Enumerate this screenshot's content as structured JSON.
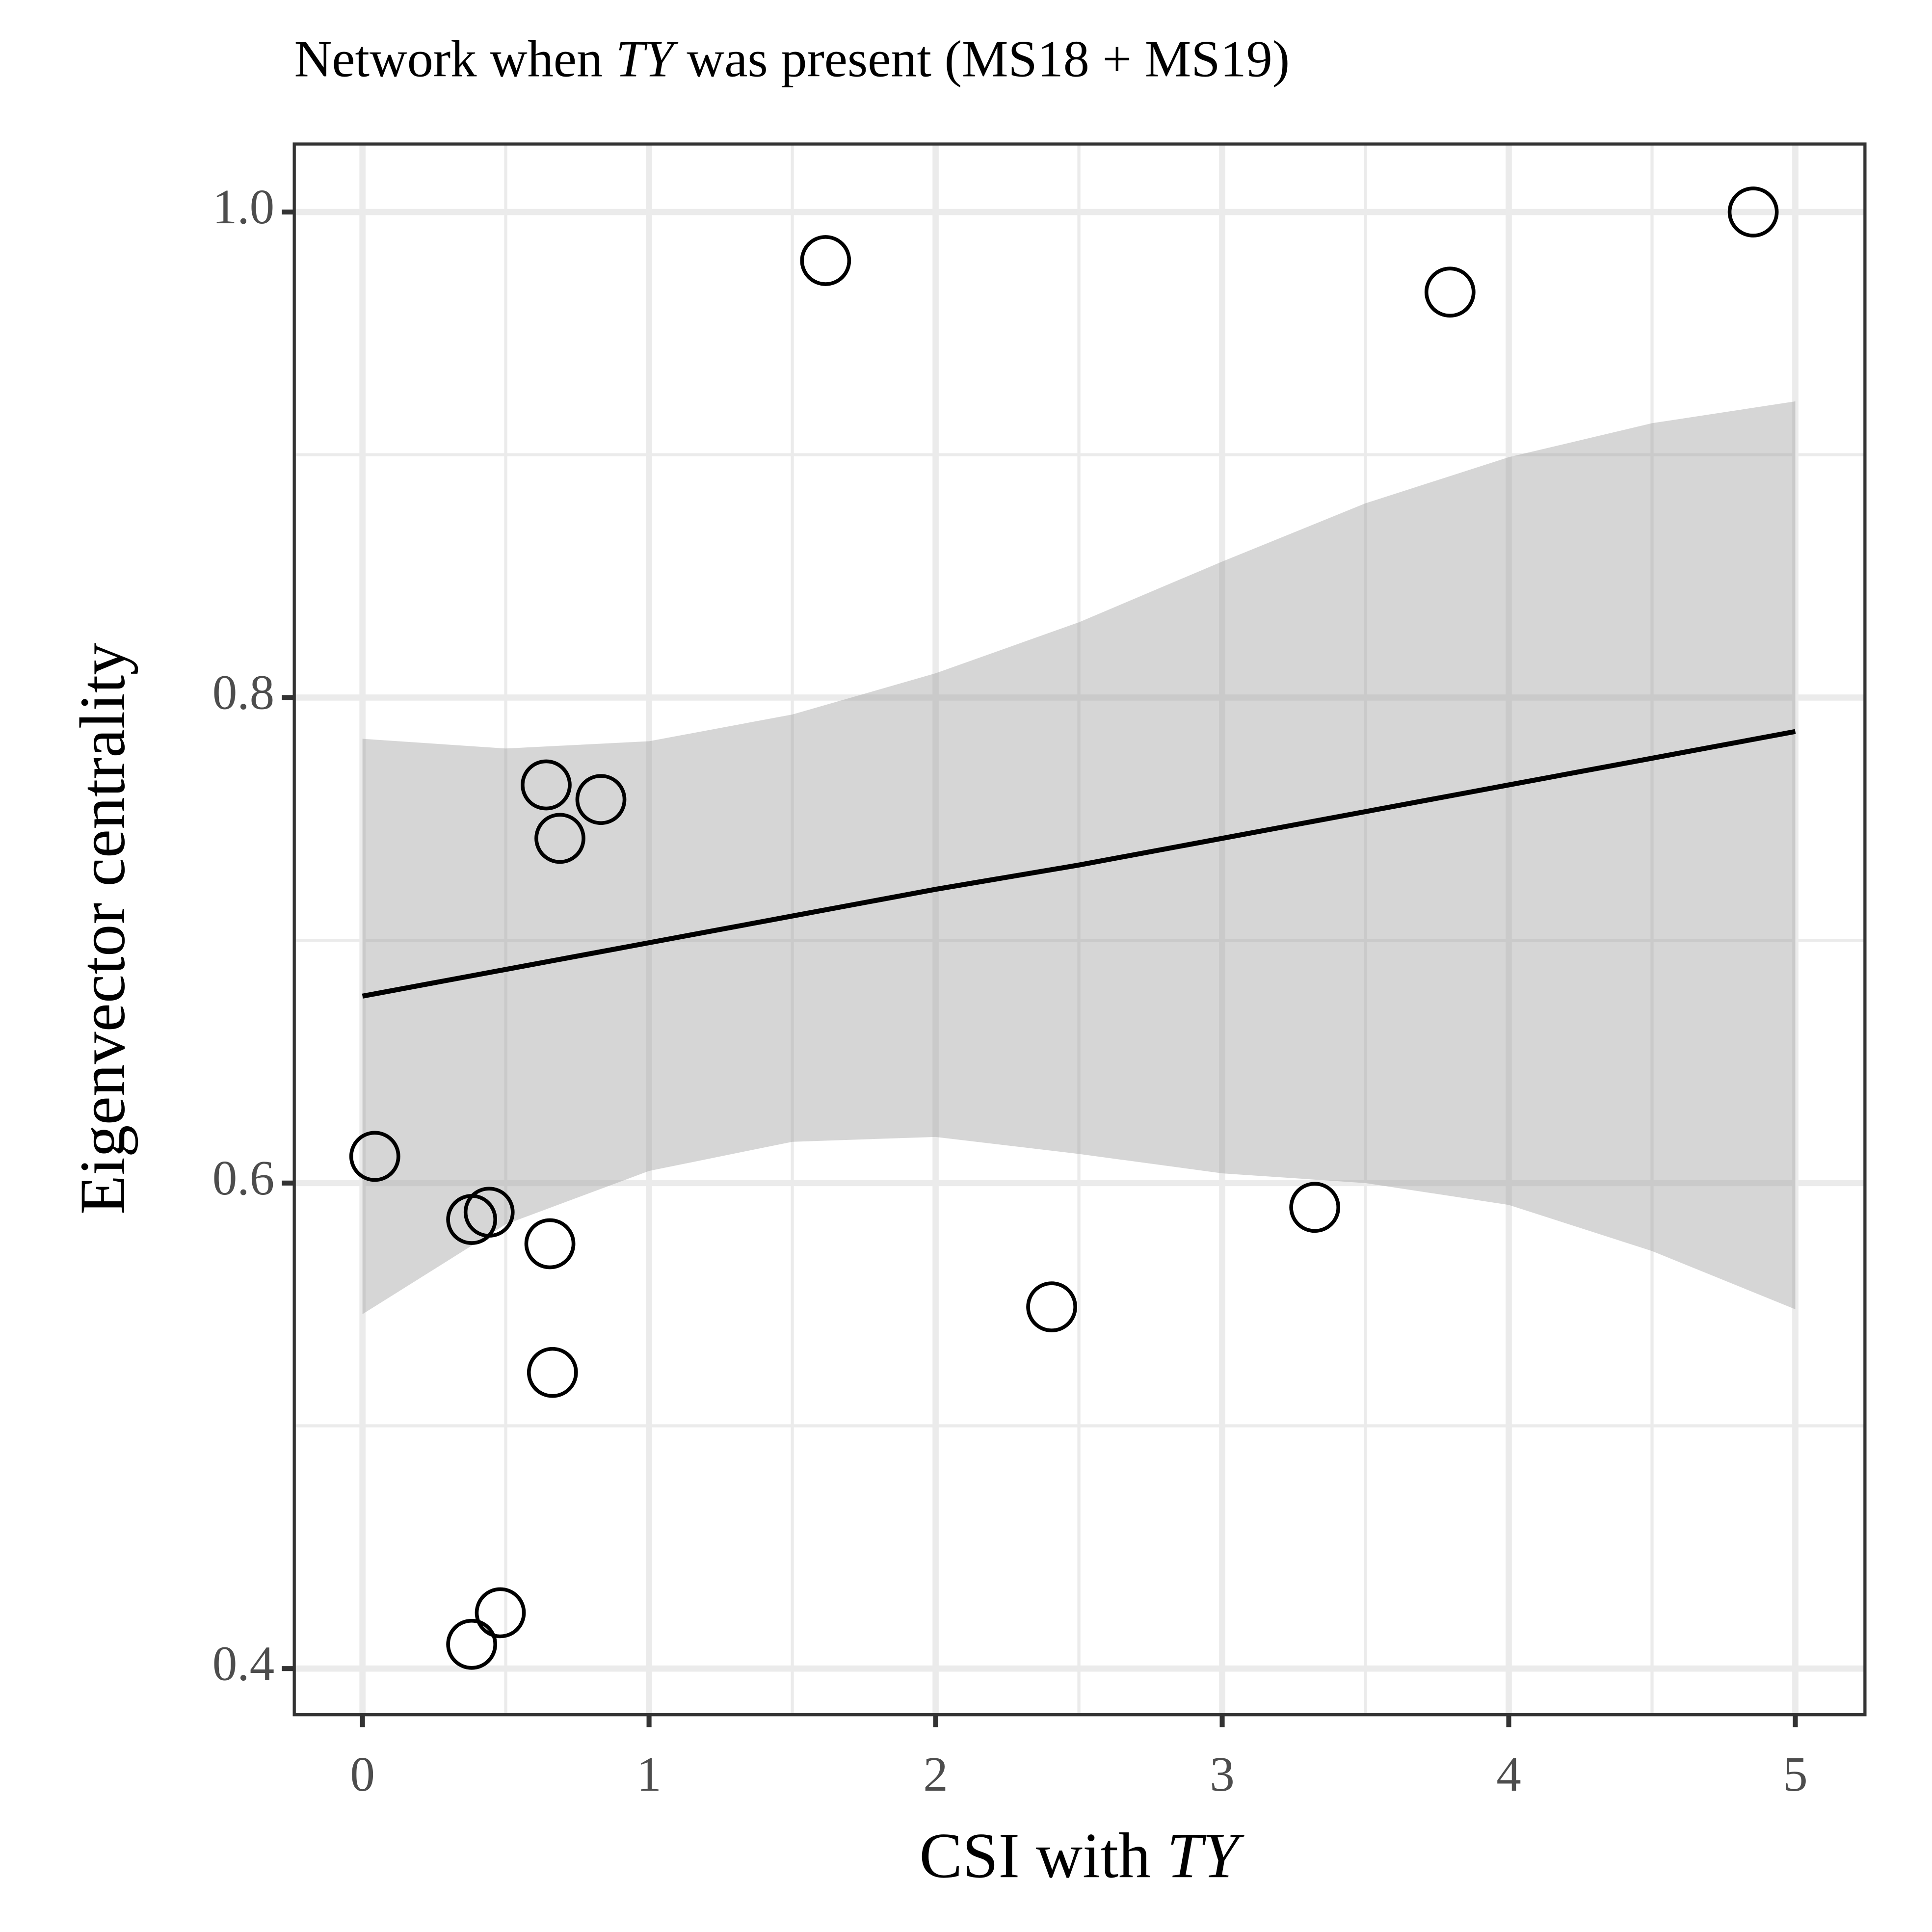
{
  "chart_data": {
    "type": "scatter",
    "title": [
      "Network when ",
      "TY",
      " was present (MS18 + MS19)"
    ],
    "x_label": [
      "CSI with ",
      "TY"
    ],
    "y_label": "Eigenvector centrality",
    "x": [
      1.616,
      3.795,
      4.853,
      0.641,
      0.832,
      0.689,
      0.043,
      0.381,
      0.442,
      0.654,
      0.663,
      2.405,
      3.323,
      0.481,
      0.381
    ],
    "values": [
      0.98,
      0.967,
      1.0,
      0.764,
      0.758,
      0.742,
      0.611,
      0.585,
      0.588,
      0.575,
      0.522,
      0.549,
      0.59,
      0.423,
      0.41
    ],
    "color": "#000000",
    "fit": {
      "x": [
        0,
        0.5,
        1,
        1.5,
        2,
        2.5,
        3,
        3.5,
        4,
        4.5,
        5
      ],
      "values": [
        0.677,
        0.688,
        0.699,
        0.71,
        0.721,
        0.731,
        0.742,
        0.753,
        0.764,
        0.775,
        0.786
      ],
      "color": "#000000"
    },
    "band": {
      "x": [
        0,
        0.5,
        1,
        1.5,
        2,
        2.5,
        3,
        3.5,
        4,
        4.5,
        5
      ],
      "upper": [
        0.783,
        0.779,
        0.782,
        0.793,
        0.81,
        0.831,
        0.856,
        0.88,
        0.899,
        0.913,
        0.922
      ],
      "lower": [
        0.546,
        0.583,
        0.605,
        0.617,
        0.619,
        0.612,
        0.604,
        0.6,
        0.591,
        0.572,
        0.548
      ],
      "color": "#999999"
    },
    "xlim": [
      -0.238,
      5.243
    ],
    "ylim": [
      0.381,
      1.028
    ],
    "xticks": [
      0,
      1,
      2,
      3,
      4,
      5
    ],
    "yticks": [
      0.4,
      0.6,
      0.8,
      {
        "value": 1,
        "label": "1.0"
      }
    ],
    "minor_xticks": [
      0.5,
      1.5,
      2.5,
      3.5,
      4.5
    ],
    "minor_yticks": [
      0.5,
      0.7,
      0.9
    ],
    "grid": true
  }
}
